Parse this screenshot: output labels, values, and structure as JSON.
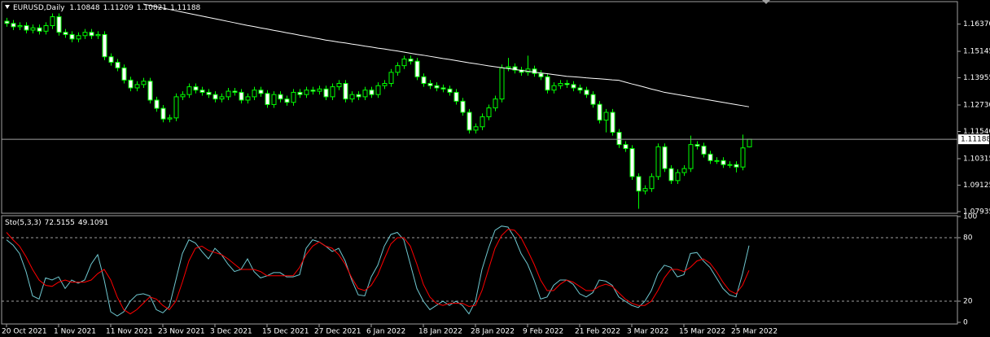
{
  "chart_data": [
    {
      "type": "candlestick",
      "title": "EURUSD,Daily",
      "categories": [
        "20 Oct 2021",
        null,
        null,
        null,
        null,
        null,
        null,
        null,
        "1 Nov 2021",
        null,
        null,
        null,
        null,
        null,
        null,
        null,
        "11 Nov 2021",
        null,
        null,
        null,
        null,
        null,
        null,
        null,
        "23 Nov 2021",
        null,
        null,
        null,
        null,
        null,
        null,
        null,
        "3 Dec 2021",
        null,
        null,
        null,
        null,
        null,
        null,
        null,
        "15 Dec 2021",
        null,
        null,
        null,
        null,
        null,
        null,
        null,
        "27 Dec 2021",
        null,
        null,
        null,
        null,
        null,
        null,
        null,
        "6 Jan 2022",
        null,
        null,
        null,
        null,
        null,
        null,
        null,
        "18 Jan 2022",
        null,
        null,
        null,
        null,
        null,
        null,
        null,
        "28 Jan 2022",
        null,
        null,
        null,
        null,
        null,
        null,
        null,
        "9 Feb 2022",
        null,
        null,
        null,
        null,
        null,
        null,
        null,
        "21 Feb 2022",
        null,
        null,
        null,
        null,
        null,
        null,
        null,
        "3 Mar 2022",
        null,
        null,
        null,
        null,
        null,
        null,
        null,
        "15 Mar 2022",
        null,
        null,
        null,
        null,
        null,
        null,
        null,
        "25 Mar 2022",
        null,
        null
      ],
      "open": [
        1.165,
        1.164,
        1.1625,
        1.163,
        1.161,
        1.162,
        1.1605,
        1.163,
        1.167,
        1.16,
        1.159,
        1.157,
        1.1585,
        1.16,
        1.1585,
        1.159,
        1.149,
        1.1465,
        1.144,
        1.1385,
        1.135,
        1.1365,
        1.138,
        1.1295,
        1.1258,
        1.121,
        1.1215,
        1.131,
        1.132,
        1.1355,
        1.134,
        1.133,
        1.132,
        1.13,
        1.131,
        1.1335,
        1.133,
        1.1295,
        1.131,
        1.134,
        1.1325,
        1.1275,
        1.132,
        1.13,
        1.1285,
        1.133,
        1.132,
        1.134,
        1.1335,
        1.1345,
        1.131,
        1.1355,
        1.137,
        1.13,
        1.132,
        1.131,
        1.134,
        1.132,
        1.136,
        1.137,
        1.142,
        1.145,
        1.148,
        1.147,
        1.14,
        1.137,
        1.136,
        1.135,
        1.1345,
        1.133,
        1.129,
        1.124,
        1.116,
        1.1175,
        1.122,
        1.126,
        1.13,
        1.144,
        1.1445,
        1.143,
        1.142,
        1.1435,
        1.1415,
        1.14,
        1.134,
        1.136,
        1.137,
        1.1365,
        1.135,
        1.134,
        1.132,
        1.1276,
        1.1205,
        1.124,
        1.115,
        1.1095,
        1.1077,
        1.0951,
        1.0886,
        1.0897,
        1.0951,
        1.1085,
        1.0987,
        1.0933,
        1.0969,
        1.0987,
        1.1095,
        1.1088,
        1.1052,
        1.1023,
        1.1023,
        1.1005,
        1.1005,
        1.0994,
        1.10848
      ],
      "high": [
        1.1665,
        1.1655,
        1.1645,
        1.1645,
        1.1635,
        1.1635,
        1.1645,
        1.1685,
        1.1685,
        1.1615,
        1.1605,
        1.16,
        1.1615,
        1.1615,
        1.1605,
        1.1605,
        1.1505,
        1.148,
        1.1455,
        1.14,
        1.138,
        1.1395,
        1.1395,
        1.131,
        1.1273,
        1.123,
        1.1325,
        1.1335,
        1.137,
        1.137,
        1.1355,
        1.1345,
        1.1335,
        1.1325,
        1.135,
        1.135,
        1.1345,
        1.1325,
        1.1355,
        1.1355,
        1.134,
        1.1335,
        1.1335,
        1.1315,
        1.1345,
        1.1345,
        1.1355,
        1.1355,
        1.136,
        1.136,
        1.137,
        1.1385,
        1.1385,
        1.1335,
        1.1335,
        1.1355,
        1.1355,
        1.1375,
        1.1385,
        1.1435,
        1.1465,
        1.1495,
        1.1495,
        1.1485,
        1.1415,
        1.1385,
        1.1375,
        1.1365,
        1.136,
        1.1345,
        1.1305,
        1.1255,
        1.119,
        1.1235,
        1.1275,
        1.1315,
        1.1455,
        1.1485,
        1.146,
        1.1445,
        1.1495,
        1.145,
        1.143,
        1.1415,
        1.1375,
        1.1385,
        1.1385,
        1.138,
        1.1365,
        1.1355,
        1.1335,
        1.1291,
        1.1255,
        1.1255,
        1.1165,
        1.111,
        1.1092,
        1.0966,
        1.0912,
        1.0966,
        1.11,
        1.11,
        1.1002,
        1.0984,
        1.1002,
        1.1135,
        1.111,
        1.1103,
        1.1067,
        1.1038,
        1.1038,
        1.102,
        1.102,
        1.114,
        1.11209
      ],
      "low": [
        1.1625,
        1.161,
        1.161,
        1.1595,
        1.1595,
        1.159,
        1.159,
        1.1615,
        1.1585,
        1.1575,
        1.1555,
        1.1555,
        1.157,
        1.157,
        1.157,
        1.1475,
        1.145,
        1.1425,
        1.137,
        1.1335,
        1.1335,
        1.135,
        1.128,
        1.1243,
        1.1195,
        1.1195,
        1.12,
        1.1295,
        1.1305,
        1.1325,
        1.1315,
        1.1305,
        1.1285,
        1.1285,
        1.1295,
        1.1315,
        1.128,
        1.128,
        1.1295,
        1.131,
        1.126,
        1.126,
        1.1285,
        1.127,
        1.127,
        1.1305,
        1.1305,
        1.132,
        1.132,
        1.1295,
        1.1295,
        1.134,
        1.1285,
        1.1285,
        1.1295,
        1.1295,
        1.1305,
        1.1305,
        1.1345,
        1.1355,
        1.1405,
        1.1435,
        1.1455,
        1.1385,
        1.1355,
        1.1345,
        1.1335,
        1.133,
        1.1315,
        1.1275,
        1.1225,
        1.1145,
        1.1145,
        1.116,
        1.1205,
        1.1245,
        1.1285,
        1.1425,
        1.1415,
        1.1405,
        1.1405,
        1.14,
        1.1385,
        1.1325,
        1.1325,
        1.1345,
        1.135,
        1.1335,
        1.1325,
        1.1305,
        1.1261,
        1.119,
        1.115,
        1.1135,
        1.108,
        1.1062,
        1.0936,
        1.0806,
        1.0871,
        1.0882,
        1.0936,
        1.0972,
        1.0918,
        1.0918,
        1.0954,
        1.0972,
        1.1073,
        1.1037,
        1.1008,
        1.1008,
        1.099,
        1.099,
        1.097,
        1.0979,
        1.10821
      ],
      "close": [
        1.164,
        1.1625,
        1.163,
        1.161,
        1.162,
        1.1605,
        1.163,
        1.167,
        1.16,
        1.159,
        1.157,
        1.1585,
        1.16,
        1.1585,
        1.159,
        1.149,
        1.1465,
        1.144,
        1.1385,
        1.135,
        1.1365,
        1.138,
        1.1295,
        1.1258,
        1.121,
        1.1215,
        1.131,
        1.132,
        1.1355,
        1.134,
        1.133,
        1.132,
        1.13,
        1.131,
        1.1335,
        1.133,
        1.1295,
        1.131,
        1.134,
        1.1325,
        1.1275,
        1.132,
        1.13,
        1.1285,
        1.133,
        1.132,
        1.134,
        1.1335,
        1.1345,
        1.131,
        1.1355,
        1.137,
        1.13,
        1.132,
        1.131,
        1.134,
        1.132,
        1.136,
        1.137,
        1.142,
        1.145,
        1.148,
        1.147,
        1.14,
        1.137,
        1.136,
        1.135,
        1.1345,
        1.133,
        1.129,
        1.124,
        1.116,
        1.1175,
        1.122,
        1.126,
        1.13,
        1.144,
        1.1445,
        1.143,
        1.142,
        1.1435,
        1.1415,
        1.14,
        1.134,
        1.136,
        1.137,
        1.1365,
        1.135,
        1.134,
        1.132,
        1.1276,
        1.1205,
        1.124,
        1.115,
        1.1095,
        1.1077,
        1.0951,
        1.0886,
        1.0897,
        1.0951,
        1.1085,
        1.0987,
        1.0933,
        1.0969,
        1.0987,
        1.1095,
        1.1088,
        1.1052,
        1.1023,
        1.1023,
        1.1005,
        1.1005,
        1.0994,
        1.108,
        1.11188
      ],
      "ma": {
        "color": "#ffffff",
        "values": [
          null,
          null,
          null,
          null,
          null,
          null,
          null,
          null,
          null,
          null,
          null,
          null,
          null,
          null,
          null,
          null,
          null,
          null,
          null,
          null,
          null,
          1.1727,
          1.1721,
          1.1715,
          1.1709,
          1.1703,
          1.1697,
          1.1691,
          1.1685,
          1.1679,
          1.1673,
          1.1667,
          1.1661,
          1.1655,
          1.1649,
          1.1643,
          1.1637,
          1.1631,
          1.1626,
          1.162,
          1.1615,
          1.1609,
          1.1604,
          1.1598,
          1.1593,
          1.1587,
          1.1582,
          1.1576,
          1.1571,
          1.1565,
          1.1561,
          1.1556,
          1.1552,
          1.1547,
          1.1543,
          1.1538,
          1.1534,
          1.1529,
          1.1525,
          1.152,
          1.1516,
          1.1511,
          1.1506,
          1.1501,
          1.1497,
          1.1492,
          1.1487,
          1.1482,
          1.1478,
          1.1473,
          1.1468,
          1.1463,
          1.1459,
          1.1454,
          1.1449,
          1.1445,
          1.1441,
          1.1437,
          1.1433,
          1.1429,
          1.1425,
          1.1421,
          1.1417,
          1.1414,
          1.141,
          1.1406,
          1.1402,
          1.14,
          1.1398,
          1.1395,
          1.1393,
          1.1391,
          1.1389,
          1.1386,
          1.1384,
          1.1376,
          1.1368,
          1.1361,
          1.1353,
          1.1345,
          1.1338,
          1.133,
          1.1325,
          1.132,
          1.1315,
          1.131,
          1.1305,
          1.13,
          1.1295,
          1.129,
          1.1285,
          1.128,
          1.1275,
          1.127,
          1.1265
        ]
      },
      "ylim": [
        1.0786,
        1.1738
      ],
      "yticks": [
        {
          "value": 1.1637,
          "label": "1.16370"
        },
        {
          "value": 1.15145,
          "label": "1.15145"
        },
        {
          "value": 1.13955,
          "label": "1.13955"
        },
        {
          "value": 1.1273,
          "label": "1.12730"
        },
        {
          "value": 1.1154,
          "label": "1.11540"
        },
        {
          "value": 1.10315,
          "label": "1.10315"
        },
        {
          "value": 1.09125,
          "label": "1.09125"
        },
        {
          "value": 1.07935,
          "label": "1.07935"
        }
      ],
      "color": "#00ff00",
      "bull_fill": "#000000",
      "bear_fill": "#ffffff",
      "last_price_line": true
    },
    {
      "type": "line",
      "title": "Sto(5,3,3)",
      "series": [
        {
          "color": "#6fc8d0",
          "values": [
            78,
            73,
            65,
            48,
            25,
            22,
            42,
            40,
            43,
            32,
            40,
            37,
            40,
            55,
            64,
            40,
            10,
            6,
            10,
            20,
            26,
            27,
            25,
            12,
            9,
            15,
            40,
            65,
            78,
            75,
            67,
            60,
            70,
            64,
            55,
            48,
            50,
            60,
            48,
            42,
            44,
            47,
            47,
            43,
            43,
            45,
            70,
            78,
            76,
            72,
            67,
            70,
            58,
            40,
            26,
            25,
            43,
            54,
            72,
            83,
            85,
            78,
            55,
            32,
            20,
            12,
            16,
            20,
            16,
            20,
            16,
            8,
            20,
            50,
            70,
            87,
            91,
            90,
            80,
            65,
            55,
            40,
            22,
            24,
            35,
            40,
            40,
            36,
            27,
            24,
            28,
            40,
            39,
            35,
            24,
            20,
            16,
            14,
            20,
            30,
            46,
            54,
            52,
            43,
            45,
            65,
            66,
            58,
            52,
            42,
            32,
            26,
            24,
            46,
            72.5155
          ]
        },
        {
          "color": "#ff0000",
          "values": [
            85,
            78,
            72,
            62,
            50,
            40,
            35,
            34,
            38,
            40,
            38,
            38,
            38,
            40,
            46,
            50,
            40,
            24,
            12,
            8,
            12,
            18,
            24,
            22,
            16,
            12,
            20,
            38,
            58,
            70,
            72,
            68,
            66,
            64,
            60,
            55,
            50,
            50,
            50,
            48,
            44,
            44,
            44,
            44,
            44,
            52,
            64,
            72,
            76,
            72,
            70,
            64,
            55,
            42,
            32,
            30,
            35,
            45,
            60,
            74,
            80,
            80,
            72,
            55,
            36,
            24,
            18,
            16,
            18,
            18,
            18,
            15,
            16,
            30,
            50,
            70,
            82,
            88,
            87,
            80,
            68,
            55,
            40,
            30,
            30,
            36,
            40,
            38,
            34,
            30,
            30,
            34,
            36,
            34,
            28,
            22,
            18,
            16,
            16,
            20,
            30,
            42,
            50,
            50,
            48,
            52,
            58,
            60,
            56,
            48,
            38,
            30,
            27,
            35,
            49.1091
          ]
        }
      ],
      "ylim": [
        0,
        100
      ],
      "yticks": [
        100,
        80,
        20,
        0
      ],
      "grid": "dashed"
    }
  ]
}
